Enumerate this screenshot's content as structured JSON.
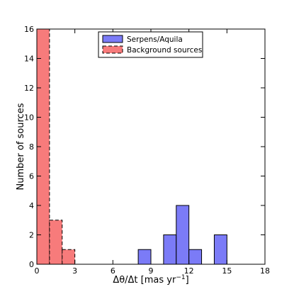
{
  "chart_data": {
    "type": "bar",
    "subtype": "histogram",
    "xlabel": "Δθ/Δt [mas yr⁻¹]",
    "xlabel_parts": {
      "main": "Δθ/Δt [mas yr",
      "sup": "−1",
      "tail": "]"
    },
    "ylabel": "Number of sources",
    "xlim": [
      0,
      18
    ],
    "ylim": [
      0,
      16
    ],
    "x_ticks": [
      0,
      3,
      6,
      9,
      12,
      15,
      18
    ],
    "y_ticks": [
      0,
      2,
      4,
      6,
      8,
      10,
      12,
      14,
      16
    ],
    "grid": false,
    "legend_position": "top-center",
    "series": [
      {
        "name": "Serpens/Aquila",
        "color": "#7b7bf7",
        "edge_color": "#000000",
        "edge_style": "solid",
        "bins": [
          {
            "x0": 8.0,
            "x1": 9.0,
            "count": 1
          },
          {
            "x0": 10.0,
            "x1": 11.0,
            "count": 2
          },
          {
            "x0": 11.0,
            "x1": 12.0,
            "count": 4
          },
          {
            "x0": 12.0,
            "x1": 13.0,
            "count": 1
          },
          {
            "x0": 14.0,
            "x1": 15.0,
            "count": 2
          }
        ]
      },
      {
        "name": "Background sources",
        "color": "#f77b7b",
        "edge_color": "#000000",
        "edge_style": "dashed",
        "bins": [
          {
            "x0": 0.0,
            "x1": 1.0,
            "count": 16
          },
          {
            "x0": 1.0,
            "x1": 2.0,
            "count": 3
          },
          {
            "x0": 2.0,
            "x1": 3.0,
            "count": 1
          }
        ]
      }
    ]
  }
}
